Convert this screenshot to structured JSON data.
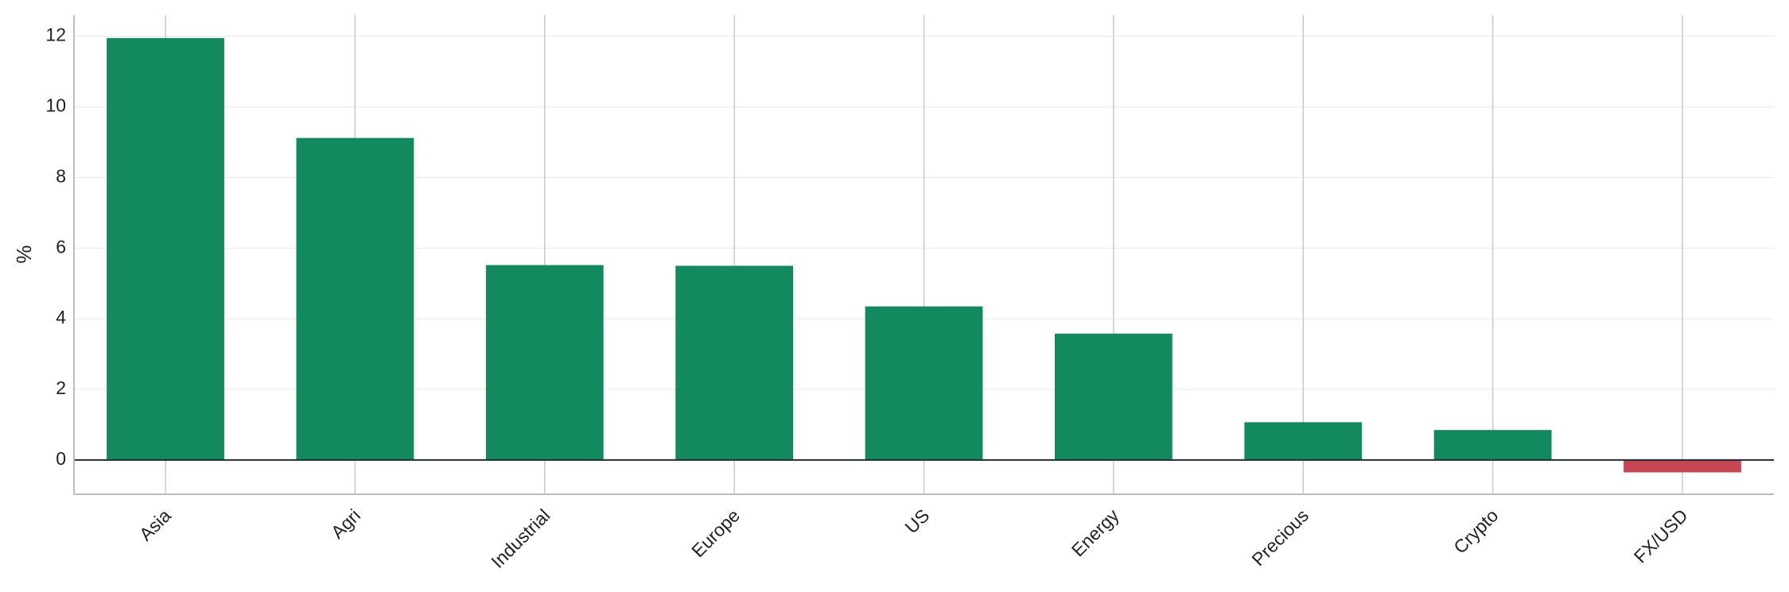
{
  "chart_data": {
    "type": "bar",
    "y_label": "%",
    "categories": [
      "Asia",
      "Agri",
      "Industrial",
      "Europe",
      "US",
      "Energy",
      "Precious",
      "Crypto",
      "FX/USD"
    ],
    "values": [
      11.95,
      9.12,
      5.52,
      5.5,
      4.35,
      3.58,
      1.07,
      0.85,
      -0.35
    ],
    "colors": [
      "#138a5e",
      "#138a5e",
      "#138a5e",
      "#138a5e",
      "#138a5e",
      "#138a5e",
      "#138a5e",
      "#138a5e",
      "#c84652"
    ],
    "ylim": [
      -0.97,
      12.6
    ],
    "yticks": [
      0,
      2,
      4,
      6,
      8,
      10,
      12
    ],
    "grid": true
  }
}
